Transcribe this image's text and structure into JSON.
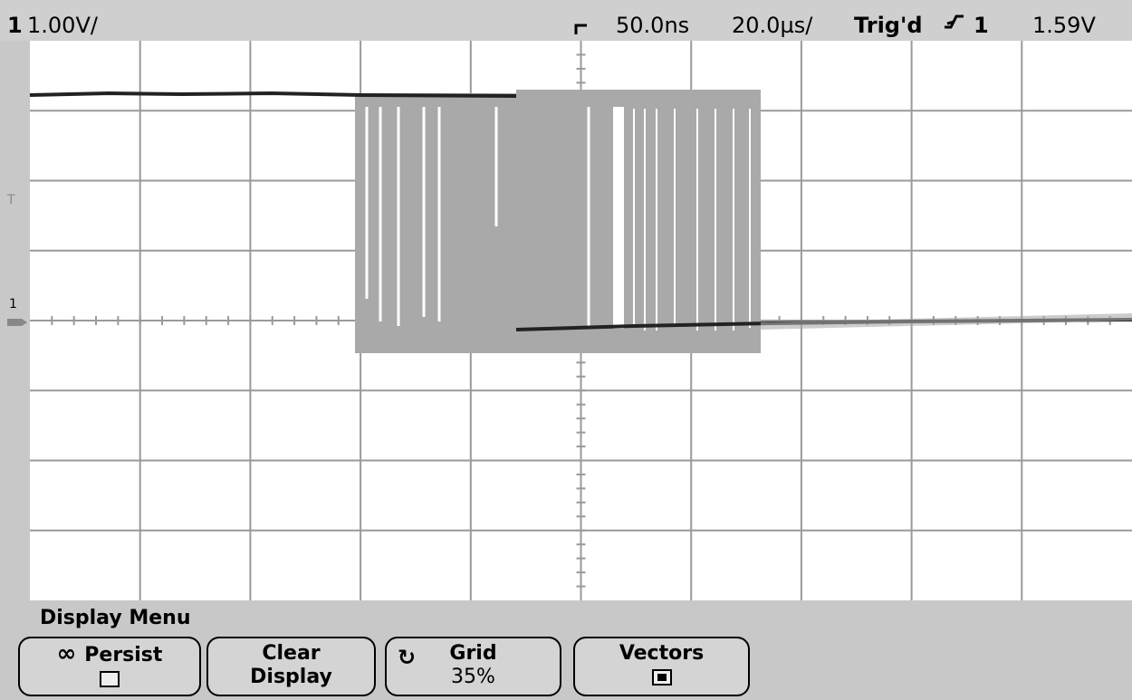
{
  "header": {
    "channel": "1",
    "scale": "1.00V/",
    "delay": "50.0ns",
    "timebase": "20.0µs/",
    "trigger_status": "Trig'd",
    "trigger_source": "1",
    "trigger_level": "1.59V"
  },
  "markers": {
    "trigger": "T",
    "ground": "1"
  },
  "menu": {
    "title": "Display Menu",
    "softkeys": [
      {
        "label": "Persist"
      },
      {
        "label": "Clear Display"
      },
      {
        "label": "Grid",
        "value": "35%"
      },
      {
        "label": "Vectors"
      }
    ]
  }
}
